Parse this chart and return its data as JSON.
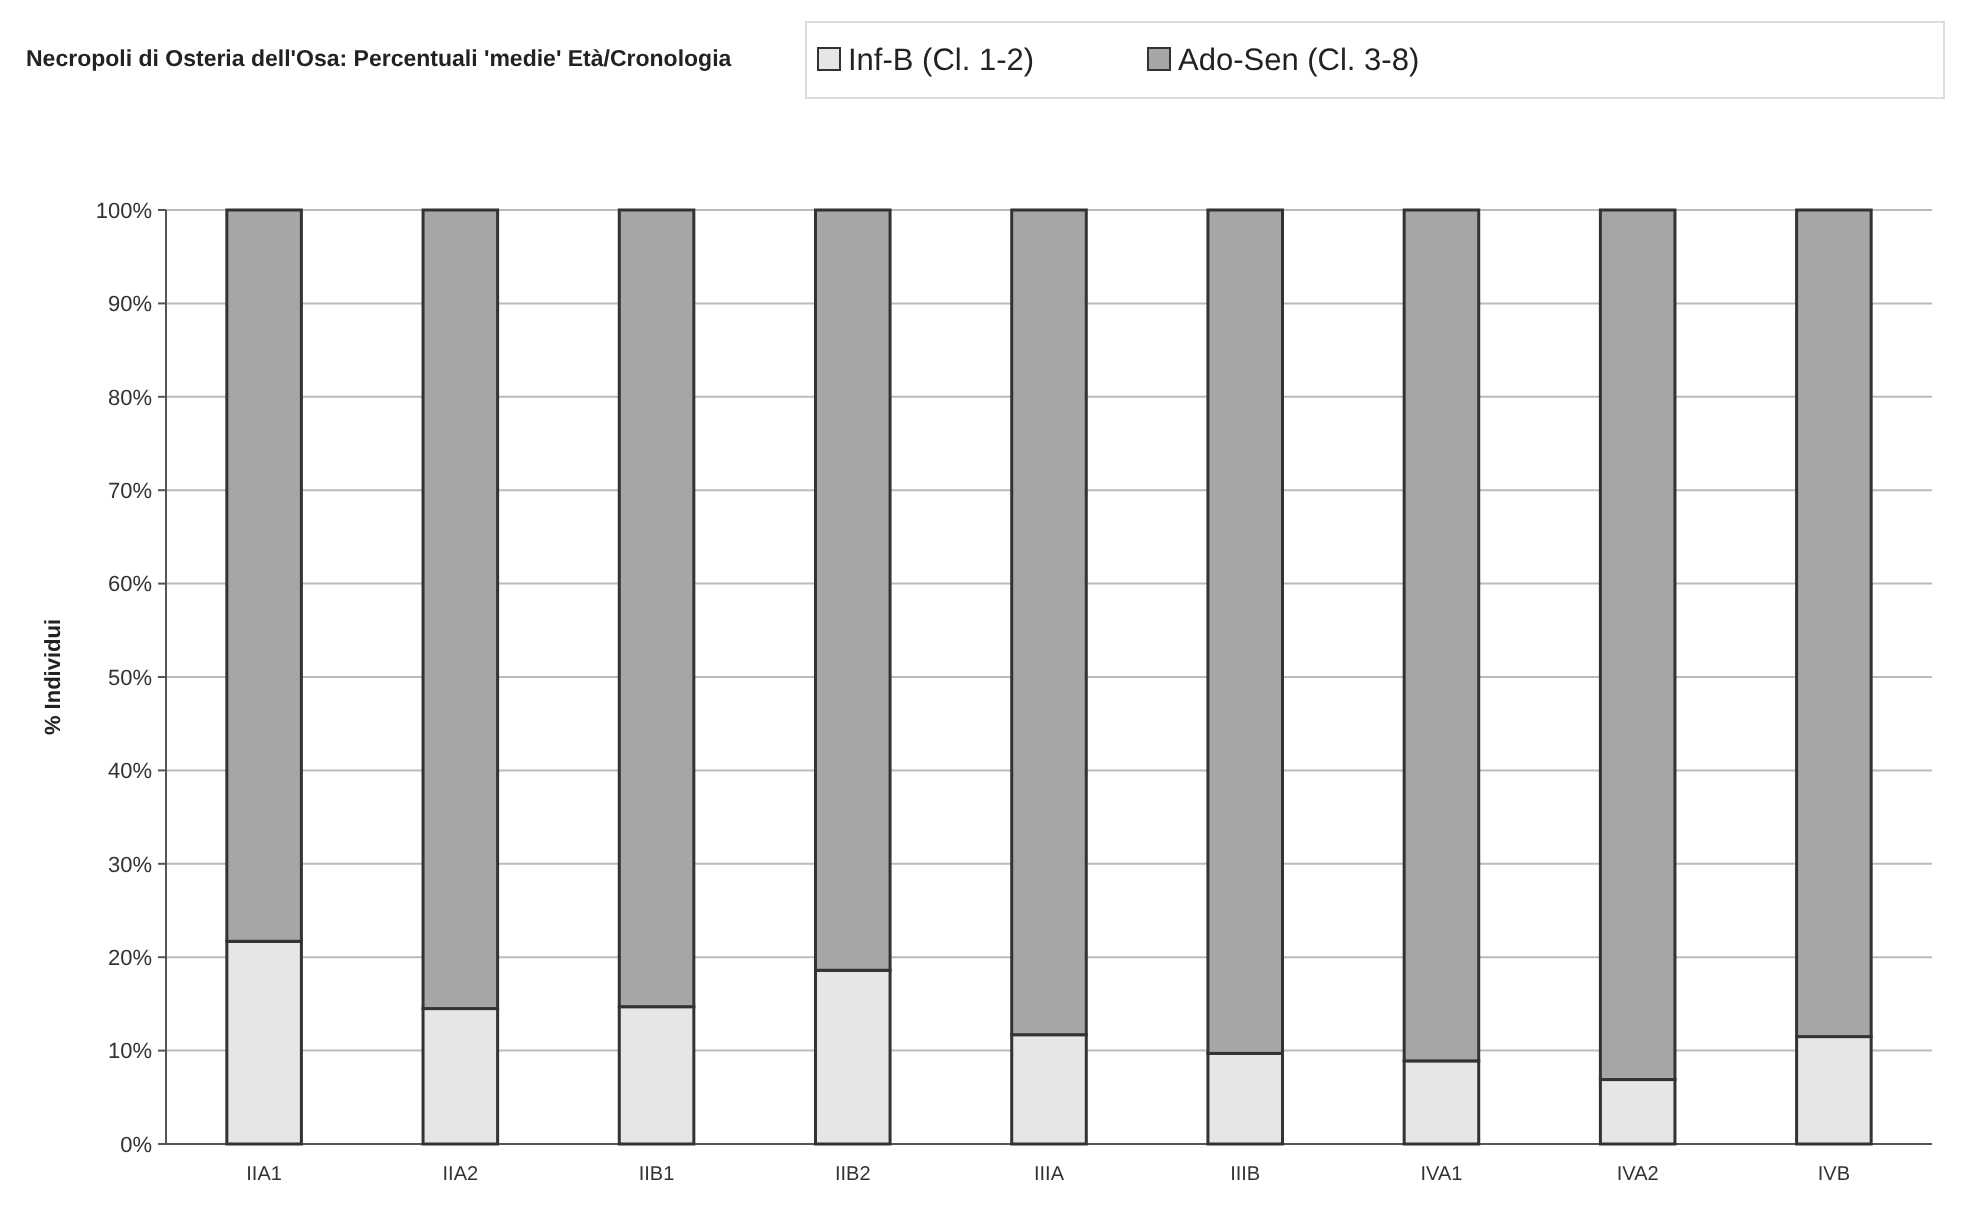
{
  "chart_data": {
    "type": "bar",
    "title": "Necropoli di Osteria dell'Osa: Percentuali 'medie' Età/Cronologia",
    "ylabel": "% Individui",
    "categories": [
      "IIA1",
      "IIA2",
      "IIB1",
      "IIB2",
      "IIIA",
      "IIIB",
      "IVA1",
      "IVA2",
      "IVB"
    ],
    "stacked": true,
    "series": [
      {
        "name": "Inf-B (Cl. 1-2)",
        "color": "#e6e6e6",
        "values": [
          21.7,
          14.5,
          14.7,
          18.6,
          11.7,
          9.7,
          8.9,
          6.9,
          11.5
        ]
      },
      {
        "name": "Ado-Sen (Cl. 3-8)",
        "color": "#a6a6a6",
        "values": [
          78.3,
          85.5,
          85.3,
          81.4,
          88.3,
          90.3,
          91.1,
          93.1,
          88.5
        ]
      }
    ],
    "ylim": [
      0,
      100
    ],
    "yticks": [
      {
        "value": 0,
        "label": "0%"
      },
      {
        "value": 10,
        "label": "10%"
      },
      {
        "value": 20,
        "label": "20%"
      },
      {
        "value": 30,
        "label": "30%"
      },
      {
        "value": 40,
        "label": "40%"
      },
      {
        "value": 50,
        "label": "50%"
      },
      {
        "value": 60,
        "label": "60%"
      },
      {
        "value": 70,
        "label": "70%"
      },
      {
        "value": 80,
        "label": "80%"
      },
      {
        "value": 90,
        "label": "90%"
      },
      {
        "value": 100,
        "label": "100%"
      }
    ],
    "grid": "y",
    "legend": "top right"
  }
}
